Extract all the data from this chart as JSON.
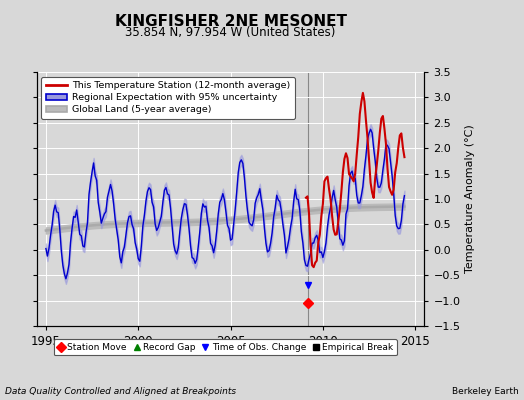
{
  "title": "KINGFISHER 2NE MESONET",
  "subtitle": "35.854 N, 97.954 W (United States)",
  "ylabel": "Temperature Anomaly (°C)",
  "footer_left": "Data Quality Controlled and Aligned at Breakpoints",
  "footer_right": "Berkeley Earth",
  "xlim": [
    1994.5,
    2015.5
  ],
  "ylim": [
    -1.5,
    3.5
  ],
  "yticks": [
    -1.5,
    -1.0,
    -0.5,
    0.0,
    0.5,
    1.0,
    1.5,
    2.0,
    2.5,
    3.0,
    3.5
  ],
  "xticks": [
    1995,
    2000,
    2005,
    2010,
    2015
  ],
  "bg_color": "#d8d8d8",
  "plot_bg_color": "#d8d8d8",
  "grid_color": "#ffffff",
  "station_line_color": "#cc0000",
  "regional_line_color": "#0000cc",
  "regional_fill_color": "#9999dd",
  "global_line_color": "#aaaaaa",
  "global_fill_color": "#bbbbbb",
  "vertical_line_x": 2009.2,
  "vertical_line_color": "#888888",
  "station_move_x": 2009.2,
  "station_move_y": -1.05,
  "obs_change_x": 2009.2,
  "obs_change_y": -0.7,
  "legend_entries": [
    "This Temperature Station (12-month average)",
    "Regional Expectation with 95% uncertainty",
    "Global Land (5-year average)"
  ],
  "legend_symbol_labels": [
    "Station Move",
    "Record Gap",
    "Time of Obs. Change",
    "Empirical Break"
  ]
}
